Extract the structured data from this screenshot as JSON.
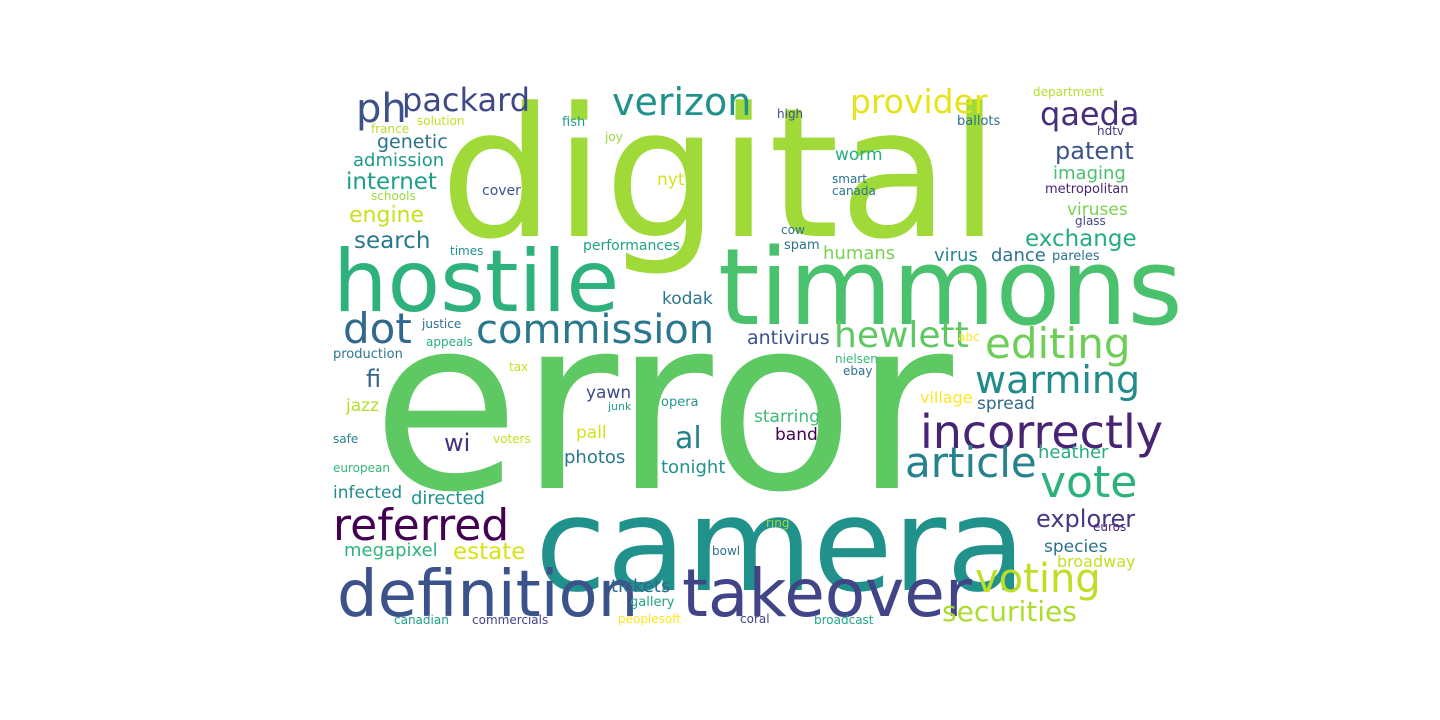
{
  "words": [
    {
      "text": "error",
      "color": "#5ec962"
    },
    {
      "text": "digital",
      "color": "#a0da39"
    },
    {
      "text": "camera",
      "color": "#21918c"
    },
    {
      "text": "timmons",
      "color": "#4ac16d"
    },
    {
      "text": "hostile",
      "color": "#2db27d"
    },
    {
      "text": "takeover",
      "color": "#414487"
    },
    {
      "text": "definition",
      "color": "#3b528b"
    },
    {
      "text": "commission",
      "color": "#2a788e"
    },
    {
      "text": "incorrectly",
      "color": "#482475"
    },
    {
      "text": "article",
      "color": "#26828e"
    },
    {
      "text": "referred",
      "color": "#440154"
    },
    {
      "text": "voting",
      "color": "#bddf26"
    },
    {
      "text": "vote",
      "color": "#2db27d"
    },
    {
      "text": "editing",
      "color": "#6ece58"
    },
    {
      "text": "hewlett",
      "color": "#5ec962"
    },
    {
      "text": "warming",
      "color": "#228c8d"
    },
    {
      "text": "verizon",
      "color": "#21918c"
    },
    {
      "text": "packard",
      "color": "#3e4989"
    },
    {
      "text": "dot",
      "color": "#31688e"
    },
    {
      "text": "provider",
      "color": "#e5e419"
    },
    {
      "text": "ph",
      "color": "#3b528b"
    },
    {
      "text": "qaeda",
      "color": "#472d7b"
    },
    {
      "text": "securities",
      "color": "#addc30"
    },
    {
      "text": "al",
      "color": "#26828e"
    },
    {
      "text": "explorer",
      "color": "#443983"
    },
    {
      "text": "patent",
      "color": "#3b528b"
    },
    {
      "text": "exchange",
      "color": "#25ac82"
    },
    {
      "text": "internet",
      "color": "#1f9e89"
    },
    {
      "text": "estate",
      "color": "#d8e219"
    },
    {
      "text": "search",
      "color": "#2a788e"
    },
    {
      "text": "engine",
      "color": "#c8e020"
    },
    {
      "text": "wi",
      "color": "#46337e"
    },
    {
      "text": "fi",
      "color": "#33638d"
    },
    {
      "text": "genetic",
      "color": "#2c728e"
    },
    {
      "text": "antivirus",
      "color": "#3b528b"
    },
    {
      "text": "admission",
      "color": "#1f9a8a"
    },
    {
      "text": "megapixel",
      "color": "#2eb37c"
    },
    {
      "text": "tickets",
      "color": "#31688e"
    },
    {
      "text": "imaging",
      "color": "#4ac16d"
    },
    {
      "text": "photos",
      "color": "#2a788e"
    },
    {
      "text": "tonight",
      "color": "#21918c"
    },
    {
      "text": "heather",
      "color": "#27ad81"
    },
    {
      "text": "species",
      "color": "#2c728e"
    },
    {
      "text": "viruses",
      "color": "#7ad151"
    },
    {
      "text": "humans",
      "color": "#7ad151"
    },
    {
      "text": "infected",
      "color": "#238a8d"
    },
    {
      "text": "directed",
      "color": "#20928c"
    },
    {
      "text": "kodak",
      "color": "#2a788e"
    },
    {
      "text": "nyt",
      "color": "#d8e219"
    },
    {
      "text": "worm",
      "color": "#27ad81"
    },
    {
      "text": "dance",
      "color": "#2c728e"
    },
    {
      "text": "virus",
      "color": "#23898e"
    },
    {
      "text": "broadway",
      "color": "#c2df23"
    },
    {
      "text": "spread",
      "color": "#31688e"
    },
    {
      "text": "starring",
      "color": "#3bbb75"
    },
    {
      "text": "yawn",
      "color": "#3e4989"
    },
    {
      "text": "band",
      "color": "#440154"
    },
    {
      "text": "pall",
      "color": "#d2e21b"
    },
    {
      "text": "jazz",
      "color": "#b5de2b"
    },
    {
      "text": "village",
      "color": "#fde725"
    },
    {
      "text": "metropolitan",
      "color": "#482576"
    },
    {
      "text": "performances",
      "color": "#1fa188"
    },
    {
      "text": "cover",
      "color": "#3b528b"
    },
    {
      "text": "times",
      "color": "#21918c"
    },
    {
      "text": "spam",
      "color": "#2c728e"
    },
    {
      "text": "pareles",
      "color": "#2c728e"
    },
    {
      "text": "production",
      "color": "#2a788e"
    },
    {
      "text": "justice",
      "color": "#2c728e"
    },
    {
      "text": "appeals",
      "color": "#27ad81"
    },
    {
      "text": "opera",
      "color": "#1f9a8a"
    },
    {
      "text": "fish",
      "color": "#1f9e89"
    },
    {
      "text": "joy",
      "color": "#93d741"
    },
    {
      "text": "high",
      "color": "#3b528b"
    },
    {
      "text": "hdtv",
      "color": "#443983"
    },
    {
      "text": "ballots",
      "color": "#2c728e"
    },
    {
      "text": "department",
      "color": "#b5de2b"
    },
    {
      "text": "solution",
      "color": "#c8e020"
    },
    {
      "text": "france",
      "color": "#b5de2b"
    },
    {
      "text": "schools",
      "color": "#9bd93c"
    },
    {
      "text": "smart",
      "color": "#2c728e"
    },
    {
      "text": "canada",
      "color": "#2c728e"
    },
    {
      "text": "glass",
      "color": "#3e4989"
    },
    {
      "text": "cow",
      "color": "#2c728e"
    },
    {
      "text": "abc",
      "color": "#fde725"
    },
    {
      "text": "nielsen",
      "color": "#35b779"
    },
    {
      "text": "ebay",
      "color": "#2c728e"
    },
    {
      "text": "tax",
      "color": "#c8e020"
    },
    {
      "text": "junk",
      "color": "#1fa188"
    },
    {
      "text": "safe",
      "color": "#26828e"
    },
    {
      "text": "voters",
      "color": "#c8e020"
    },
    {
      "text": "european",
      "color": "#35b779"
    },
    {
      "text": "ring",
      "color": "#a0da39"
    },
    {
      "text": "euros",
      "color": "#482576"
    },
    {
      "text": "bowl",
      "color": "#2c728e"
    },
    {
      "text": "canadian",
      "color": "#1fa188"
    },
    {
      "text": "commercials",
      "color": "#414487"
    },
    {
      "text": "peoplesoft",
      "color": "#fde725"
    },
    {
      "text": "coral",
      "color": "#414487"
    },
    {
      "text": "broadcast",
      "color": "#22a785"
    },
    {
      "text": "gallery",
      "color": "#20a486"
    }
  ]
}
